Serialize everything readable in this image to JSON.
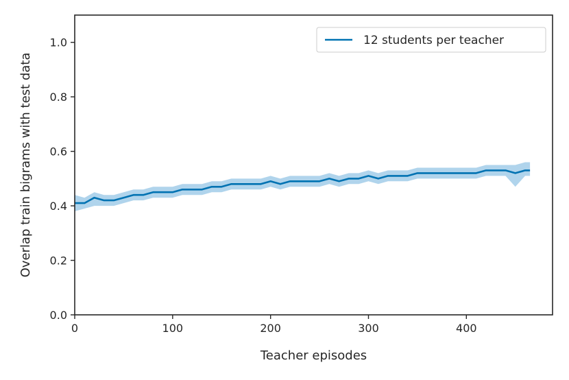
{
  "chart_data": {
    "type": "line",
    "title": "",
    "xlabel": "Teacher episodes",
    "ylabel": "Overlap train bigrams with test data",
    "xlim": [
      0,
      488
    ],
    "ylim": [
      0.0,
      1.1
    ],
    "xticks": [
      0,
      100,
      200,
      300,
      400
    ],
    "yticks": [
      0.0,
      0.2,
      0.4,
      0.6,
      0.8,
      1.0
    ],
    "xtick_labels": [
      "0",
      "100",
      "200",
      "300",
      "400"
    ],
    "ytick_labels": [
      "0.0",
      "0.2",
      "0.4",
      "0.6",
      "0.8",
      "1.0"
    ],
    "grid": false,
    "legend": {
      "position": "top-right",
      "entries": [
        "12 students per teacher"
      ]
    },
    "series": [
      {
        "name": "12 students per teacher",
        "color": "#0072b2",
        "band_color": "#6fb1dc",
        "x": [
          0,
          10,
          20,
          30,
          40,
          50,
          60,
          70,
          80,
          90,
          100,
          110,
          120,
          130,
          140,
          150,
          160,
          170,
          180,
          190,
          200,
          210,
          220,
          230,
          240,
          250,
          260,
          270,
          280,
          290,
          300,
          310,
          320,
          330,
          340,
          350,
          360,
          370,
          380,
          390,
          400,
          410,
          420,
          430,
          440,
          450,
          460,
          465
        ],
        "y": [
          0.41,
          0.41,
          0.43,
          0.42,
          0.42,
          0.43,
          0.44,
          0.44,
          0.45,
          0.45,
          0.45,
          0.46,
          0.46,
          0.46,
          0.47,
          0.47,
          0.48,
          0.48,
          0.48,
          0.48,
          0.49,
          0.48,
          0.49,
          0.49,
          0.49,
          0.49,
          0.5,
          0.49,
          0.5,
          0.5,
          0.51,
          0.5,
          0.51,
          0.51,
          0.51,
          0.52,
          0.52,
          0.52,
          0.52,
          0.52,
          0.52,
          0.52,
          0.53,
          0.53,
          0.53,
          0.52,
          0.53,
          0.53
        ],
        "y_lower": [
          0.38,
          0.39,
          0.4,
          0.4,
          0.4,
          0.41,
          0.42,
          0.42,
          0.43,
          0.43,
          0.43,
          0.44,
          0.44,
          0.44,
          0.45,
          0.45,
          0.46,
          0.46,
          0.46,
          0.46,
          0.47,
          0.46,
          0.47,
          0.47,
          0.47,
          0.47,
          0.48,
          0.47,
          0.48,
          0.48,
          0.49,
          0.48,
          0.49,
          0.49,
          0.49,
          0.5,
          0.5,
          0.5,
          0.5,
          0.5,
          0.5,
          0.5,
          0.51,
          0.51,
          0.51,
          0.47,
          0.51,
          0.51
        ],
        "y_upper": [
          0.44,
          0.43,
          0.45,
          0.44,
          0.44,
          0.45,
          0.46,
          0.46,
          0.47,
          0.47,
          0.47,
          0.48,
          0.48,
          0.48,
          0.49,
          0.49,
          0.5,
          0.5,
          0.5,
          0.5,
          0.51,
          0.5,
          0.51,
          0.51,
          0.51,
          0.51,
          0.52,
          0.51,
          0.52,
          0.52,
          0.53,
          0.52,
          0.53,
          0.53,
          0.53,
          0.54,
          0.54,
          0.54,
          0.54,
          0.54,
          0.54,
          0.54,
          0.55,
          0.55,
          0.55,
          0.55,
          0.56,
          0.56
        ]
      }
    ]
  }
}
